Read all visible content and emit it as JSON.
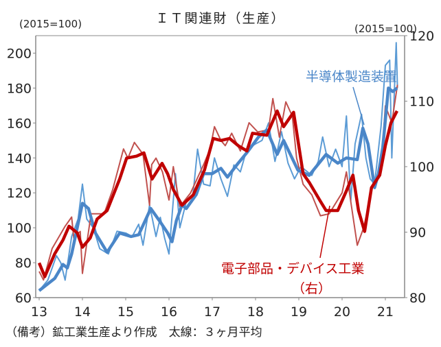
{
  "chart_data": {
    "type": "line",
    "title": "ＩＴ関連財（生産）",
    "left_unit": "(2015=100)",
    "right_unit": "(2015=100)",
    "xlim": [
      13,
      21.5
    ],
    "ylim_left": [
      60,
      210
    ],
    "ylim_right": [
      80,
      120
    ],
    "x_ticks": [
      "13",
      "14",
      "15",
      "16",
      "17",
      "18",
      "19",
      "20",
      "21"
    ],
    "y_ticks_left": [
      "60",
      "80",
      "100",
      "120",
      "140",
      "160",
      "180",
      "200"
    ],
    "y_ticks_right": [
      "80",
      "90",
      "100",
      "110",
      "120"
    ],
    "grid": false,
    "footnote": "（備考）鉱工業生産より作成　太線：３ヶ月平均",
    "colors": {
      "semi": "#4a86c8",
      "semi_thin": "#5b9bd5",
      "elec": "#c00000",
      "elec_thin": "#c0504d"
    },
    "series": [
      {
        "name": "半導体製造装置",
        "axis": "left",
        "style": "3-month average",
        "points": [
          [
            13.0,
            64
          ],
          [
            13.36,
            71
          ],
          [
            13.55,
            79
          ],
          [
            13.65,
            77
          ],
          [
            13.75,
            85
          ],
          [
            14.0,
            114
          ],
          [
            14.14,
            111
          ],
          [
            14.3,
            97
          ],
          [
            14.57,
            86
          ],
          [
            14.86,
            97
          ],
          [
            15.12,
            95
          ],
          [
            15.3,
            96
          ],
          [
            15.58,
            111
          ],
          [
            15.78,
            104
          ],
          [
            15.97,
            97
          ],
          [
            16.07,
            92
          ],
          [
            16.17,
            104
          ],
          [
            16.3,
            113
          ],
          [
            16.4,
            111
          ],
          [
            16.63,
            119
          ],
          [
            16.8,
            131
          ],
          [
            17.0,
            131
          ],
          [
            17.2,
            134
          ],
          [
            17.35,
            129
          ],
          [
            17.6,
            137
          ],
          [
            17.8,
            143
          ],
          [
            18.07,
            152
          ],
          [
            18.26,
            156
          ],
          [
            18.5,
            142
          ],
          [
            18.65,
            150
          ],
          [
            18.98,
            133
          ],
          [
            19.24,
            130
          ],
          [
            19.63,
            142
          ],
          [
            19.9,
            137
          ],
          [
            20.1,
            140
          ],
          [
            20.35,
            139
          ],
          [
            20.48,
            157
          ],
          [
            20.6,
            148
          ],
          [
            20.75,
            123
          ],
          [
            20.84,
            131
          ],
          [
            20.94,
            146
          ],
          [
            21.07,
            180
          ],
          [
            21.17,
            178
          ],
          [
            21.27,
            180
          ]
        ]
      },
      {
        "axis": "left",
        "style": "monthly",
        "points": [
          [
            13.0,
            64
          ],
          [
            13.2,
            70
          ],
          [
            13.4,
            84
          ],
          [
            13.5,
            80
          ],
          [
            13.6,
            70
          ],
          [
            13.75,
            95
          ],
          [
            13.9,
            105
          ],
          [
            14.0,
            125
          ],
          [
            14.1,
            105
          ],
          [
            14.25,
            100
          ],
          [
            14.4,
            88
          ],
          [
            14.6,
            85
          ],
          [
            14.8,
            98
          ],
          [
            15.0,
            97
          ],
          [
            15.15,
            95
          ],
          [
            15.3,
            102
          ],
          [
            15.4,
            90
          ],
          [
            15.55,
            113
          ],
          [
            15.7,
            95
          ],
          [
            15.8,
            106
          ],
          [
            15.9,
            94
          ],
          [
            16.0,
            85
          ],
          [
            16.15,
            131
          ],
          [
            16.25,
            100
          ],
          [
            16.4,
            115
          ],
          [
            16.55,
            118
          ],
          [
            16.66,
            145
          ],
          [
            16.8,
            125
          ],
          [
            16.95,
            124
          ],
          [
            17.05,
            140
          ],
          [
            17.2,
            128
          ],
          [
            17.35,
            118
          ],
          [
            17.5,
            136
          ],
          [
            17.65,
            132
          ],
          [
            17.8,
            145
          ],
          [
            18.0,
            148
          ],
          [
            18.15,
            150
          ],
          [
            18.3,
            160
          ],
          [
            18.45,
            138
          ],
          [
            18.6,
            155
          ],
          [
            18.75,
            137
          ],
          [
            18.9,
            128
          ],
          [
            19.05,
            135
          ],
          [
            19.3,
            130
          ],
          [
            19.45,
            138
          ],
          [
            19.55,
            152
          ],
          [
            19.7,
            135
          ],
          [
            19.85,
            145
          ],
          [
            20.0,
            135
          ],
          [
            20.1,
            164
          ],
          [
            20.2,
            115
          ],
          [
            20.3,
            148
          ],
          [
            20.45,
            165
          ],
          [
            20.55,
            140
          ],
          [
            20.65,
            128
          ],
          [
            20.75,
            125
          ],
          [
            20.9,
            158
          ],
          [
            21.0,
            193
          ],
          [
            21.1,
            196
          ],
          [
            21.15,
            140
          ],
          [
            21.25,
            206
          ],
          [
            21.28,
            180
          ]
        ]
      },
      {
        "name": "電子部品・デバイス工業（右）",
        "axis": "right",
        "style": "3-month average",
        "points": [
          [
            13.0,
            85.3
          ],
          [
            13.13,
            83.2
          ],
          [
            13.36,
            86.7
          ],
          [
            13.55,
            88.8
          ],
          [
            13.69,
            90.9
          ],
          [
            13.88,
            89.9
          ],
          [
            14.0,
            87.7
          ],
          [
            14.18,
            89.1
          ],
          [
            14.34,
            92.0
          ],
          [
            14.57,
            93.3
          ],
          [
            14.86,
            98.1
          ],
          [
            15.02,
            101.3
          ],
          [
            15.25,
            101.6
          ],
          [
            15.42,
            102.1
          ],
          [
            15.58,
            98.7
          ],
          [
            15.61,
            98.1
          ],
          [
            15.84,
            100.5
          ],
          [
            15.97,
            98.9
          ],
          [
            16.1,
            96.5
          ],
          [
            16.3,
            94.1
          ],
          [
            16.56,
            95.7
          ],
          [
            16.82,
            99.5
          ],
          [
            17.02,
            104.3
          ],
          [
            17.2,
            104.0
          ],
          [
            17.4,
            104.3
          ],
          [
            17.6,
            103.2
          ],
          [
            17.8,
            102.4
          ],
          [
            17.93,
            105.1
          ],
          [
            18.26,
            104.8
          ],
          [
            18.5,
            108.5
          ],
          [
            18.65,
            106.1
          ],
          [
            18.88,
            108.3
          ],
          [
            19.1,
            98.9
          ],
          [
            19.24,
            97.6
          ],
          [
            19.5,
            94.7
          ],
          [
            19.63,
            93.3
          ],
          [
            19.9,
            93.3
          ],
          [
            20.1,
            96.3
          ],
          [
            20.25,
            98.7
          ],
          [
            20.38,
            93.3
          ],
          [
            20.52,
            90.1
          ],
          [
            20.68,
            96.8
          ],
          [
            20.87,
            98.7
          ],
          [
            21.0,
            103.2
          ],
          [
            21.13,
            106.7
          ],
          [
            21.27,
            108.5
          ]
        ]
      },
      {
        "axis": "right",
        "style": "monthly",
        "points": [
          [
            13.0,
            84.0
          ],
          [
            13.1,
            82.7
          ],
          [
            13.3,
            87.5
          ],
          [
            13.6,
            90.9
          ],
          [
            13.75,
            92.3
          ],
          [
            13.8,
            89.1
          ],
          [
            13.95,
            90.1
          ],
          [
            14.0,
            83.7
          ],
          [
            14.2,
            92.8
          ],
          [
            14.5,
            92.8
          ],
          [
            14.7,
            96.5
          ],
          [
            14.95,
            102.7
          ],
          [
            15.05,
            101.3
          ],
          [
            15.2,
            103.7
          ],
          [
            15.4,
            101.9
          ],
          [
            15.55,
            94.1
          ],
          [
            15.6,
            100.3
          ],
          [
            15.7,
            101.3
          ],
          [
            15.85,
            99.2
          ],
          [
            16.0,
            94.9
          ],
          [
            16.1,
            100.0
          ],
          [
            16.25,
            93.9
          ],
          [
            16.5,
            96.0
          ],
          [
            16.8,
            100.3
          ],
          [
            16.95,
            102.7
          ],
          [
            17.05,
            106.1
          ],
          [
            17.2,
            104.0
          ],
          [
            17.3,
            103.2
          ],
          [
            17.45,
            105.1
          ],
          [
            17.65,
            102.4
          ],
          [
            17.85,
            106.7
          ],
          [
            18.05,
            105.3
          ],
          [
            18.3,
            105.6
          ],
          [
            18.4,
            110.4
          ],
          [
            18.55,
            104.5
          ],
          [
            18.7,
            109.9
          ],
          [
            18.85,
            107.7
          ],
          [
            18.95,
            101.3
          ],
          [
            19.1,
            97.3
          ],
          [
            19.3,
            95.7
          ],
          [
            19.5,
            92.5
          ],
          [
            19.7,
            92.8
          ],
          [
            20.0,
            96.0
          ],
          [
            20.1,
            99.2
          ],
          [
            20.2,
            94.7
          ],
          [
            20.35,
            88.0
          ],
          [
            20.5,
            90.7
          ],
          [
            20.7,
            96.8
          ],
          [
            20.9,
            99.5
          ],
          [
            21.0,
            109.3
          ],
          [
            21.15,
            106.7
          ],
          [
            21.28,
            112.5
          ]
        ]
      }
    ],
    "annotations": {
      "semi_label": "半導体製造装置",
      "elec_label": "電子部品・デバイス工業",
      "elec_axis_note": "（右）"
    }
  }
}
